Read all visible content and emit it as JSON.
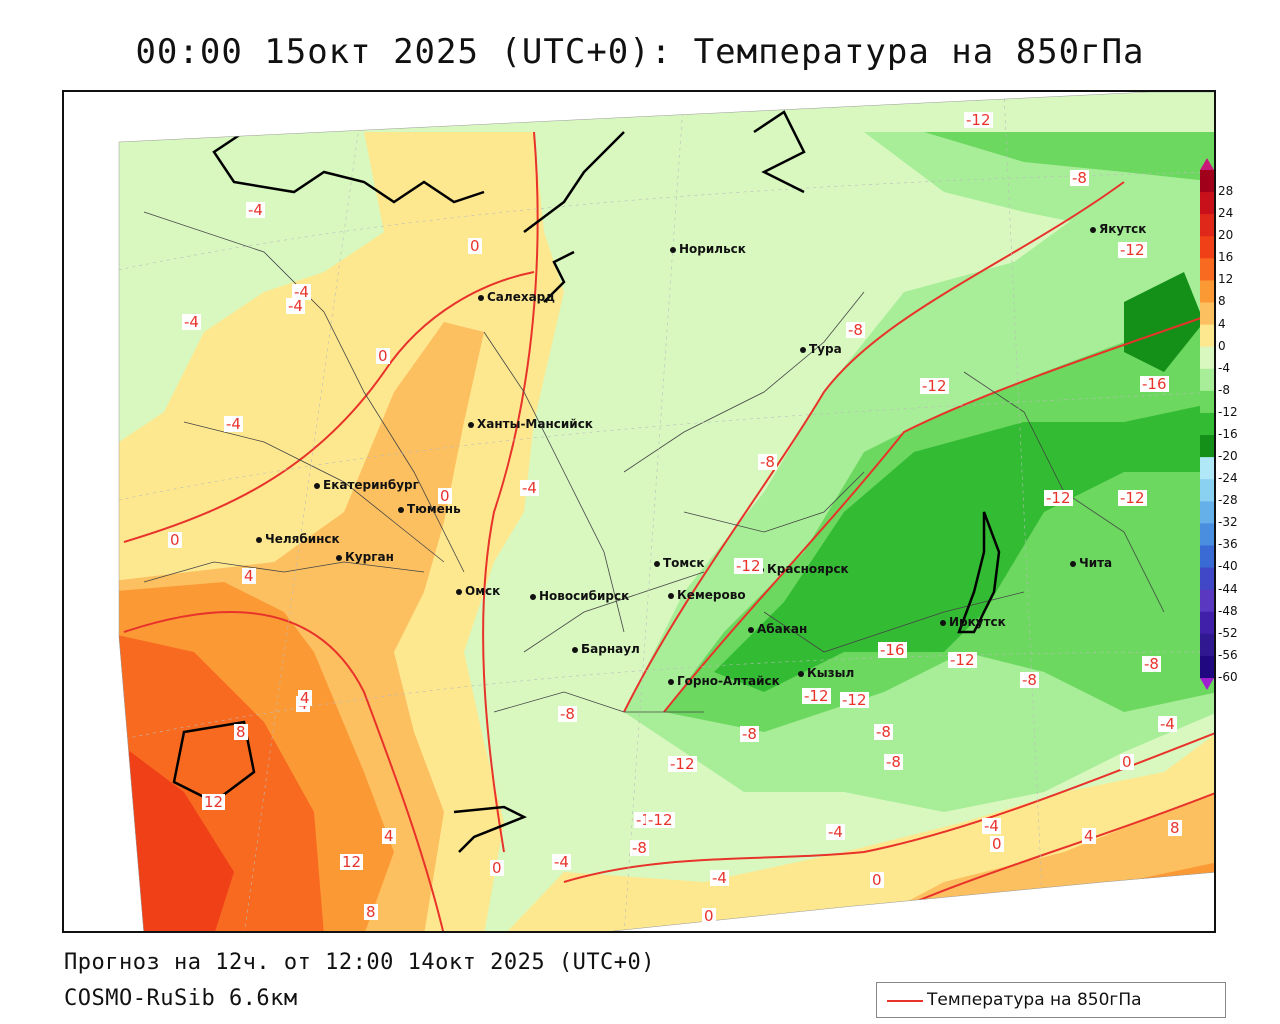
{
  "title": "00:00 15окт 2025 (UTC+0): Температура на 850гПа",
  "footer": {
    "forecast": "Прогноз на 12ч. от 12:00 14окт 2025 (UTC+0)",
    "model": "COSMO-RuSib 6.6км"
  },
  "legend": {
    "label": "Температура на 850гПа",
    "line_color": "#e8332b"
  },
  "cities": [
    {
      "name": "Норильск"
    },
    {
      "name": "Якутск"
    },
    {
      "name": "Салехард"
    },
    {
      "name": "Тура"
    },
    {
      "name": "Ханты-Мансийск"
    },
    {
      "name": "Екатеринбург"
    },
    {
      "name": "Тюмень"
    },
    {
      "name": "Челябинск"
    },
    {
      "name": "Курган"
    },
    {
      "name": "Омск"
    },
    {
      "name": "Томск"
    },
    {
      "name": "Новосибирск"
    },
    {
      "name": "Кемерово"
    },
    {
      "name": "Красноярск"
    },
    {
      "name": "Барнаул"
    },
    {
      "name": "Абакан"
    },
    {
      "name": "Иркутск"
    },
    {
      "name": "Чита"
    },
    {
      "name": "Горно-Алтайск"
    },
    {
      "name": "Кызыл"
    }
  ],
  "contour_labels": [
    "-12",
    "-8",
    "-4",
    "0",
    "-4",
    "-4",
    "-4",
    "0",
    "-4",
    "-4",
    "0",
    "-4",
    "0",
    "-8",
    "-12",
    "-12",
    "-16",
    "-8",
    "-12",
    "-12",
    "-12",
    "-8",
    "-12",
    "-16",
    "-12",
    "-8",
    "-8",
    "-12",
    "-12",
    "-8",
    "-8",
    "-12",
    "-8",
    "-4",
    "0",
    "-12",
    "-8",
    "-4",
    "-4",
    "0",
    "4",
    "8",
    "4",
    "0",
    "-4",
    "-4",
    "0",
    "0",
    "4",
    "12",
    "12",
    "8",
    "8",
    "4",
    "4"
  ],
  "colorbar": {
    "levels": [
      "28",
      "24",
      "20",
      "16",
      "12",
      "8",
      "4",
      "0",
      "-4",
      "-8",
      "-12",
      "-16",
      "-20",
      "-24",
      "-28",
      "-32",
      "-36",
      "-40",
      "-44",
      "-48",
      "-52",
      "-56",
      "-60"
    ],
    "colors": [
      "#a0001a",
      "#c8101a",
      "#e0281a",
      "#f04018",
      "#f86a20",
      "#fb9a35",
      "#fcc060",
      "#fde890",
      "#d8f8c0",
      "#a8ee98",
      "#6cd860",
      "#34bb34",
      "#149018",
      "#b0e8f8",
      "#8ad0f0",
      "#66b0ea",
      "#4a8ee0",
      "#3a6ad4",
      "#4048c8",
      "#5a38c0",
      "#4020a8",
      "#301890",
      "#200880"
    ],
    "top_color": "#c8187a",
    "bottom_color": "#a020d0"
  },
  "colors": {
    "contour": "#e8332b",
    "coast": "#000000"
  }
}
